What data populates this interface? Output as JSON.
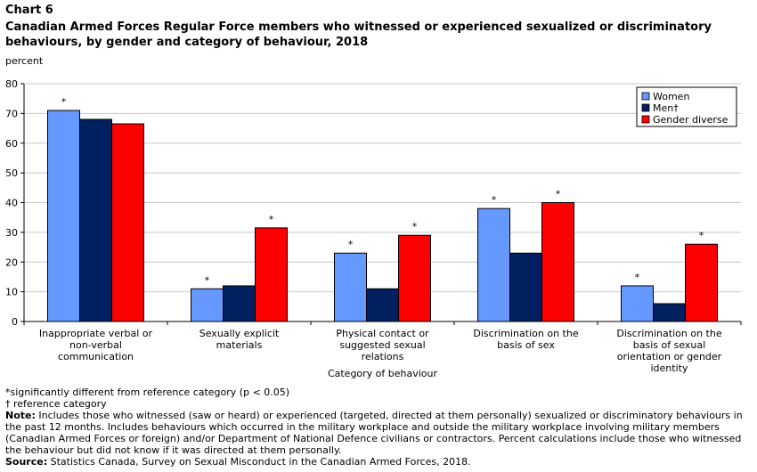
{
  "chart_label": "Chart 6",
  "chart_title": "Canadian Armed Forces Regular Force members who witnessed or experienced sexualized or discriminatory behaviours, by gender and category of behaviour, 2018",
  "chart_data": {
    "type": "bar",
    "title": "Canadian Armed Forces Regular Force members who witnessed or experienced sexualized or discriminatory behaviours, by gender and category of behaviour, 2018",
    "ylabel": "percent",
    "xlabel": "Category of behaviour",
    "ylim": [
      0,
      80
    ],
    "yticks": [
      0,
      10,
      20,
      30,
      40,
      50,
      60,
      70,
      80
    ],
    "grid": true,
    "legend_position": "top-right",
    "categories": [
      [
        "Inappropriate verbal or",
        "non-verbal",
        "communication"
      ],
      [
        "Sexually explicit",
        "materials"
      ],
      [
        "Physical contact or",
        "suggested sexual",
        "relations"
      ],
      [
        "Discrimination on the",
        "basis of sex"
      ],
      [
        "Discrimination on the",
        "basis of sexual",
        "orientation or gender",
        "identity"
      ]
    ],
    "series": [
      {
        "name": "Women",
        "color": "#6699ff",
        "values": [
          71,
          11,
          23,
          38,
          12
        ],
        "significant": [
          true,
          true,
          true,
          true,
          true
        ]
      },
      {
        "name": "Men†",
        "color": "#002060",
        "values": [
          68,
          12,
          11,
          23,
          6
        ],
        "significant": [
          false,
          false,
          false,
          false,
          false
        ]
      },
      {
        "name": "Gender diverse",
        "color": "#ff0000",
        "values": [
          66.5,
          31.5,
          29,
          40,
          26
        ],
        "significant": [
          false,
          true,
          true,
          true,
          true
        ]
      }
    ],
    "significance_marker": "*"
  },
  "notes": {
    "significance": "*significantly different from reference category (p < 0.05)",
    "reference": "† reference category",
    "note_label": "Note:",
    "note_text": " Includes those who witnessed (saw or heard) or experienced (targeted, directed at them personally) sexualized or discriminatory behaviours in the past 12 months. Includes behaviours which occurred in the military workplace and outside the military workplace involving military members (Canadian Armed Forces or foreign) and/or Department of National Defence civilians or contractors. Percent calculations include those who witnessed the behaviour but did not know if it was directed at them personally.",
    "source_label": "Source:",
    "source_text": " Statistics Canada, Survey on Sexual Misconduct in the Canadian Armed Forces, 2018."
  }
}
